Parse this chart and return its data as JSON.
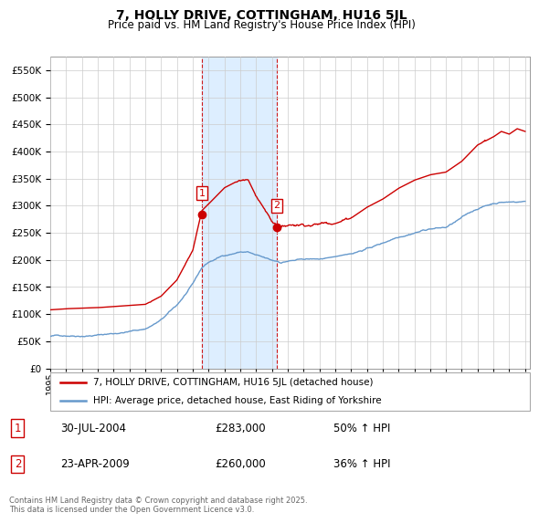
{
  "title": "7, HOLLY DRIVE, COTTINGHAM, HU16 5JL",
  "subtitle": "Price paid vs. HM Land Registry's House Price Index (HPI)",
  "legend_line1": "7, HOLLY DRIVE, COTTINGHAM, HU16 5JL (detached house)",
  "legend_line2": "HPI: Average price, detached house, East Riding of Yorkshire",
  "sale1_label": "1",
  "sale1_date": "30-JUL-2004",
  "sale1_price": "£283,000",
  "sale1_hpi": "50% ↑ HPI",
  "sale2_label": "2",
  "sale2_date": "23-APR-2009",
  "sale2_price": "£260,000",
  "sale2_hpi": "36% ↑ HPI",
  "sale1_year": 2004.58,
  "sale1_value": 283000,
  "sale2_year": 2009.31,
  "sale2_value": 260000,
  "red_color": "#cc0000",
  "blue_color": "#6699cc",
  "shade_color": "#ddeeff",
  "dashed_color": "#cc0000",
  "grid_color": "#cccccc",
  "background_color": "#ffffff",
  "ylim_min": 0,
  "ylim_max": 575000,
  "footer_text": "Contains HM Land Registry data © Crown copyright and database right 2025.\nThis data is licensed under the Open Government Licence v3.0."
}
